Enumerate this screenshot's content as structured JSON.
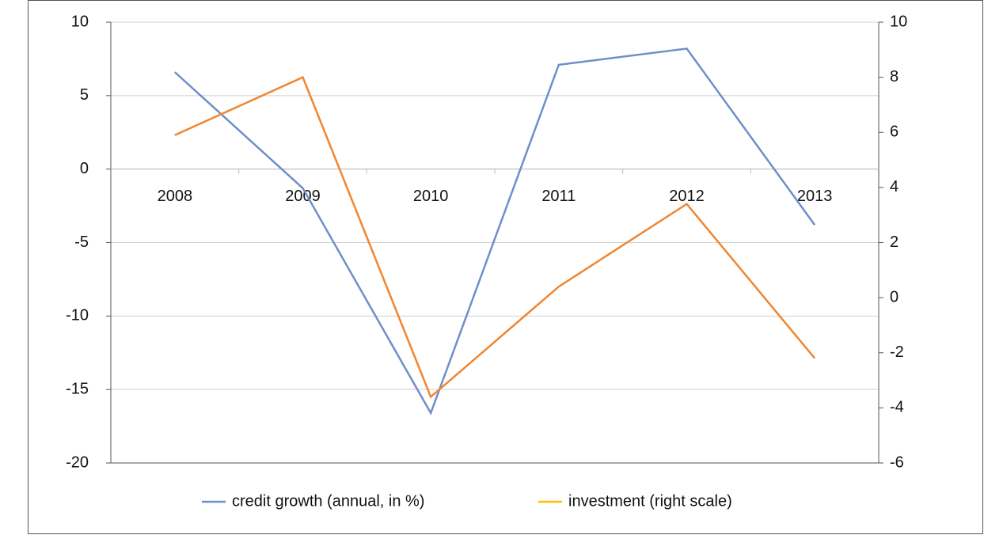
{
  "chart_data": {
    "type": "line",
    "categories": [
      "2008",
      "2009",
      "2010",
      "2011",
      "2012",
      "2013"
    ],
    "series": [
      {
        "name": "credit growth (annual, in %)",
        "color": "#6f8fc9",
        "values": [
          6.6,
          -1.3,
          -16.6,
          7.1,
          8.2,
          -3.8
        ]
      },
      {
        "name": "investment (right scale)",
        "color": "#f0862e",
        "legend_color": "#ffc000",
        "axis": "y2",
        "values": [
          5.9,
          8.0,
          -3.6,
          0.4,
          3.4,
          -2.2
        ]
      }
    ],
    "ylim": [
      -20,
      10
    ],
    "yticks": [
      -20,
      -15,
      -10,
      -5,
      0,
      5,
      10
    ],
    "y2lim": [
      -6,
      10
    ],
    "y2ticks": [
      -6,
      -4,
      -2,
      0,
      2,
      4,
      6,
      8,
      10
    ],
    "grid": true,
    "legend": "bottom"
  }
}
